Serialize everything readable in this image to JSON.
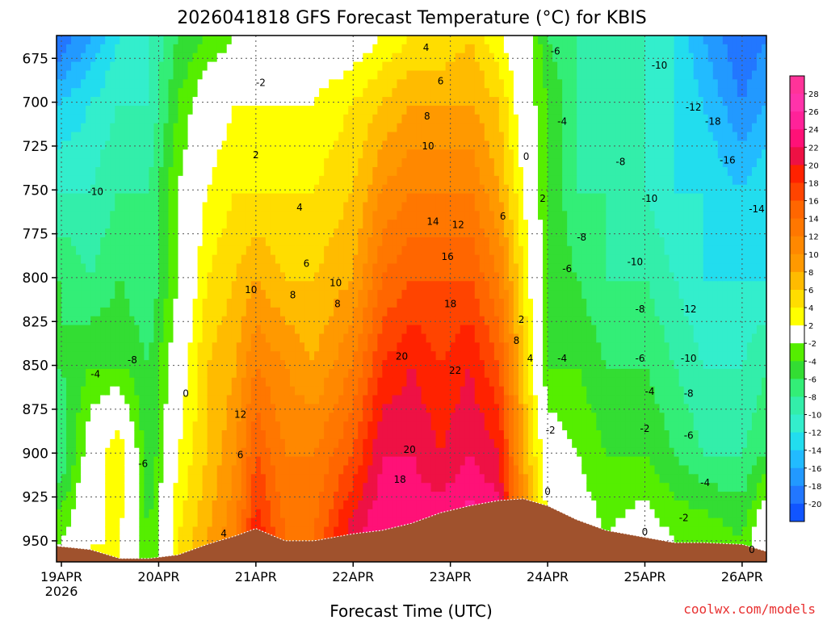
{
  "chart_data": {
    "type": "heatmap",
    "title": "2026041818 GFS Forecast Temperature (°C) for KBIS",
    "xlabel": "Forecast Time (UTC)",
    "ylabel": "",
    "credit": "coolwx.com/models",
    "y_ticks": [
      "675",
      "700",
      "725",
      "750",
      "775",
      "800",
      "825",
      "850",
      "875",
      "900",
      "925",
      "950"
    ],
    "y_values": [
      675,
      700,
      725,
      750,
      775,
      800,
      825,
      850,
      875,
      900,
      925,
      950
    ],
    "ylim": [
      662,
      962
    ],
    "x_ticks": [
      {
        "label": "19APR",
        "sub": "2026",
        "day": 0
      },
      {
        "label": "20APR",
        "sub": "",
        "day": 1
      },
      {
        "label": "21APR",
        "sub": "",
        "day": 2
      },
      {
        "label": "22APR",
        "sub": "",
        "day": 3
      },
      {
        "label": "23APR",
        "sub": "",
        "day": 4
      },
      {
        "label": "24APR",
        "sub": "",
        "day": 5
      },
      {
        "label": "25APR",
        "sub": "",
        "day": 6
      },
      {
        "label": "26APR",
        "sub": "",
        "day": 7
      }
    ],
    "xlim": [
      -0.05,
      7.25
    ],
    "colorbar": {
      "labels": [
        "28",
        "26",
        "24",
        "22",
        "20",
        "18",
        "16",
        "14",
        "12",
        "10",
        "8",
        "6",
        "4",
        "2",
        "-2",
        "-4",
        "-6",
        "-8",
        "-10",
        "-12",
        "-14",
        "-16",
        "-18",
        "-20"
      ],
      "colors": [
        "#ff3399",
        "#ff33aa",
        "#ff2299",
        "#ff1177",
        "#ee1144",
        "#ff2200",
        "#ff4400",
        "#ff6600",
        "#ff7700",
        "#ff8800",
        "#ff9900",
        "#ffbb00",
        "#ffdd00",
        "#ffff00",
        "#ffffff",
        "#55ee00",
        "#33dd33",
        "#33ee77",
        "#33eeaa",
        "#33eecc",
        "#22ddee",
        "#22bbff",
        "#2299ff",
        "#2277ff",
        "#1155ff"
      ]
    },
    "column_days": [
      0,
      0.3,
      0.6,
      0.9,
      1.2,
      1.5,
      1.8,
      2.0,
      2.3,
      2.6,
      3.0,
      3.3,
      3.6,
      3.9,
      4.2,
      4.5,
      4.75,
      5.0,
      5.3,
      5.6,
      6.0,
      6.3,
      6.6,
      7.0,
      7.25
    ],
    "level_rows": [
      662,
      700,
      750,
      800,
      850,
      900,
      950
    ],
    "temperature_grid": [
      [
        -20,
        -14,
        -10,
        -6,
        -6,
        -8,
        -2
      ],
      [
        -16,
        -12,
        -10,
        -8,
        -4,
        0,
        2
      ],
      [
        -12,
        -10,
        -8,
        -6,
        -4,
        4,
        2
      ],
      [
        -10,
        -10,
        -8,
        -8,
        -6,
        -6,
        -4
      ],
      [
        -6,
        -4,
        -2,
        -2,
        0,
        2,
        4
      ],
      [
        -4,
        0,
        2,
        4,
        6,
        6,
        8
      ],
      [
        -2,
        2,
        4,
        6,
        8,
        10,
        12
      ],
      [
        -2,
        2,
        4,
        8,
        12,
        16,
        20
      ],
      [
        0,
        2,
        4,
        6,
        10,
        12,
        14
      ],
      [
        0,
        2,
        4,
        6,
        8,
        12,
        14
      ],
      [
        0,
        4,
        6,
        8,
        12,
        16,
        22
      ],
      [
        2,
        6,
        10,
        14,
        18,
        22,
        24
      ],
      [
        4,
        8,
        12,
        16,
        20,
        22,
        24
      ],
      [
        4,
        8,
        12,
        16,
        18,
        20,
        24
      ],
      [
        6,
        8,
        12,
        16,
        20,
        22,
        26
      ],
      [
        2,
        6,
        8,
        12,
        16,
        20,
        24
      ],
      [
        0,
        0,
        2,
        4,
        6,
        8,
        12
      ],
      [
        -6,
        -4,
        -4,
        -4,
        -4,
        0,
        2
      ],
      [
        -8,
        -8,
        -8,
        -6,
        -4,
        -2,
        0
      ],
      [
        -10,
        -10,
        -8,
        -8,
        -6,
        -4,
        -2
      ],
      [
        -10,
        -10,
        -10,
        -8,
        -6,
        -4,
        0
      ],
      [
        -12,
        -12,
        -12,
        -10,
        -8,
        -6,
        -2
      ],
      [
        -16,
        -14,
        -12,
        -12,
        -10,
        -8,
        -2
      ],
      [
        -20,
        -18,
        -14,
        -12,
        -10,
        -8,
        -4
      ],
      [
        -18,
        -16,
        -12,
        -12,
        -8,
        -6,
        2
      ]
    ],
    "terrain_days": [
      -0.05,
      0.3,
      0.6,
      0.9,
      1.2,
      1.5,
      1.8,
      2.0,
      2.3,
      2.6,
      3.0,
      3.3,
      3.6,
      3.9,
      4.2,
      4.5,
      4.75,
      5.0,
      5.3,
      5.6,
      6.0,
      6.3,
      6.6,
      7.0,
      7.25
    ],
    "terrain_levels": [
      953,
      955,
      960,
      960,
      958,
      952,
      947,
      943,
      950,
      950,
      946,
      944,
      940,
      934,
      930,
      927,
      926,
      930,
      938,
      944,
      948,
      951,
      951,
      952,
      956
    ],
    "contour_labels": [
      {
        "text": "-10",
        "day": 0.35,
        "level": 751
      },
      {
        "text": "-8",
        "day": 0.73,
        "level": 847
      },
      {
        "text": "-6",
        "day": 0.84,
        "level": 906
      },
      {
        "text": "-4",
        "day": 0.35,
        "level": 855
      },
      {
        "text": "0",
        "day": 1.28,
        "level": 866
      },
      {
        "text": "4",
        "day": 1.67,
        "level": 946
      },
      {
        "text": "6",
        "day": 1.84,
        "level": 901
      },
      {
        "text": "12",
        "day": 1.84,
        "level": 878
      },
      {
        "text": "10",
        "day": 1.95,
        "level": 807
      },
      {
        "text": "-2",
        "day": 2.05,
        "level": 689
      },
      {
        "text": "2",
        "day": 2.0,
        "level": 730
      },
      {
        "text": "4",
        "day": 2.45,
        "level": 760
      },
      {
        "text": "6",
        "day": 2.52,
        "level": 792
      },
      {
        "text": "8",
        "day": 2.38,
        "level": 810
      },
      {
        "text": "10",
        "day": 2.82,
        "level": 803
      },
      {
        "text": "8",
        "day": 2.84,
        "level": 815
      },
      {
        "text": "20",
        "day": 3.5,
        "level": 845
      },
      {
        "text": "20",
        "day": 3.58,
        "level": 898
      },
      {
        "text": "18",
        "day": 3.48,
        "level": 915
      },
      {
        "text": "22",
        "day": 4.05,
        "level": 853
      },
      {
        "text": "18",
        "day": 4.0,
        "level": 815
      },
      {
        "text": "16",
        "day": 3.97,
        "level": 788
      },
      {
        "text": "14",
        "day": 3.82,
        "level": 768
      },
      {
        "text": "12",
        "day": 4.08,
        "level": 770
      },
      {
        "text": "10",
        "day": 3.77,
        "level": 725
      },
      {
        "text": "8",
        "day": 3.76,
        "level": 708
      },
      {
        "text": "6",
        "day": 3.9,
        "level": 688
      },
      {
        "text": "4",
        "day": 3.75,
        "level": 669
      },
      {
        "text": "6",
        "day": 4.54,
        "level": 765
      },
      {
        "text": "8",
        "day": 4.68,
        "level": 836
      },
      {
        "text": "2",
        "day": 4.73,
        "level": 824
      },
      {
        "text": "4",
        "day": 4.82,
        "level": 846
      },
      {
        "text": "0",
        "day": 4.78,
        "level": 731
      },
      {
        "text": "2",
        "day": 4.95,
        "level": 755
      },
      {
        "text": "-2",
        "day": 5.03,
        "level": 887
      },
      {
        "text": "0",
        "day": 5.0,
        "level": 922
      },
      {
        "text": "-6",
        "day": 5.08,
        "level": 671
      },
      {
        "text": "-4",
        "day": 5.15,
        "level": 711
      },
      {
        "text": "-8",
        "day": 5.35,
        "level": 777
      },
      {
        "text": "-6",
        "day": 5.2,
        "level": 795
      },
      {
        "text": "-4",
        "day": 5.15,
        "level": 846
      },
      {
        "text": "-10",
        "day": 6.15,
        "level": 679
      },
      {
        "text": "-12",
        "day": 6.5,
        "level": 703
      },
      {
        "text": "-18",
        "day": 6.7,
        "level": 711
      },
      {
        "text": "-16",
        "day": 6.85,
        "level": 733
      },
      {
        "text": "-14",
        "day": 7.15,
        "level": 761
      },
      {
        "text": "-8",
        "day": 5.75,
        "level": 734
      },
      {
        "text": "-10",
        "day": 6.05,
        "level": 755
      },
      {
        "text": "-10",
        "day": 5.9,
        "level": 791
      },
      {
        "text": "-8",
        "day": 5.95,
        "level": 818
      },
      {
        "text": "-6",
        "day": 5.95,
        "level": 846
      },
      {
        "text": "-4",
        "day": 6.05,
        "level": 865
      },
      {
        "text": "-2",
        "day": 6.0,
        "level": 886
      },
      {
        "text": "-12",
        "day": 6.45,
        "level": 818
      },
      {
        "text": "-10",
        "day": 6.45,
        "level": 846
      },
      {
        "text": "-8",
        "day": 6.45,
        "level": 866
      },
      {
        "text": "-6",
        "day": 6.45,
        "level": 890
      },
      {
        "text": "-4",
        "day": 6.62,
        "level": 917
      },
      {
        "text": "-2",
        "day": 6.4,
        "level": 937
      },
      {
        "text": "0",
        "day": 6.0,
        "level": 945
      },
      {
        "text": "0",
        "day": 7.1,
        "level": 955
      }
    ]
  }
}
